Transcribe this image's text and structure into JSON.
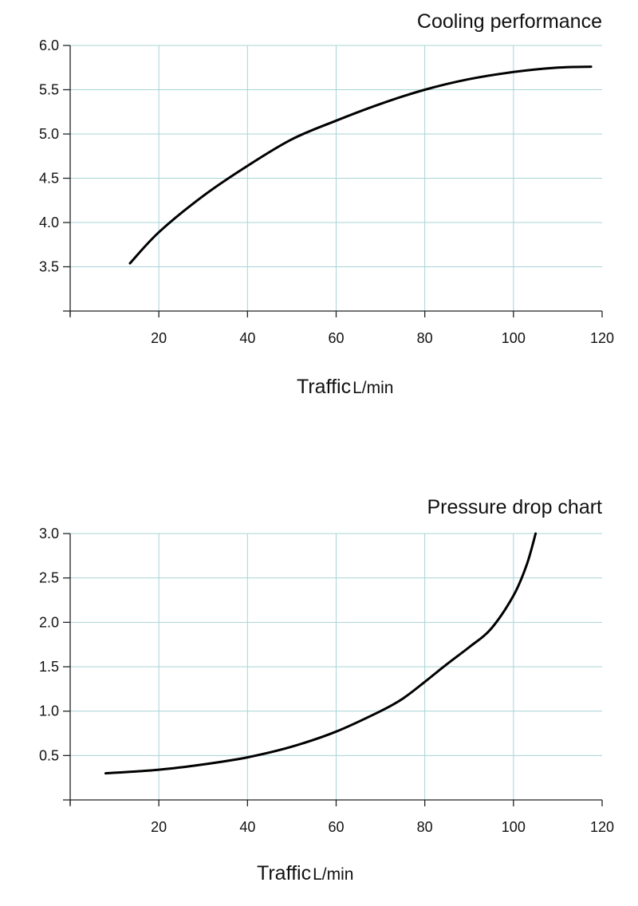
{
  "chart_data": [
    {
      "type": "line",
      "title": "Cooling performance",
      "xlabel": "Traffic",
      "xlabel_unit": "L/min",
      "ylabel": "",
      "xlim": [
        0,
        120
      ],
      "ylim": [
        3.0,
        6.0
      ],
      "x_ticks": [
        20,
        40,
        60,
        80,
        100,
        120
      ],
      "y_ticks": [
        3.5,
        4.0,
        4.5,
        5.0,
        5.5,
        6.0
      ],
      "grid": true,
      "x": [
        13.5,
        20,
        30,
        40,
        50,
        60,
        70,
        80,
        90,
        100,
        110,
        117.5
      ],
      "y": [
        3.54,
        3.89,
        4.3,
        4.64,
        4.94,
        5.15,
        5.34,
        5.5,
        5.62,
        5.7,
        5.75,
        5.76
      ]
    },
    {
      "type": "line",
      "title": "Pressure drop chart",
      "xlabel": "Traffic",
      "xlabel_unit": "L/min",
      "ylabel": "",
      "xlim": [
        0,
        120
      ],
      "ylim": [
        0,
        3.0
      ],
      "x_ticks": [
        20,
        40,
        60,
        80,
        100,
        120
      ],
      "y_ticks": [
        0.5,
        1.0,
        1.5,
        2.0,
        2.5,
        3.0
      ],
      "grid": true,
      "x": [
        8,
        20,
        30,
        40,
        50,
        60,
        70,
        75,
        80,
        85,
        90,
        95,
        100,
        103,
        105
      ],
      "y": [
        0.3,
        0.34,
        0.4,
        0.48,
        0.6,
        0.77,
        1.0,
        1.14,
        1.33,
        1.53,
        1.72,
        1.93,
        2.3,
        2.65,
        3.0
      ]
    }
  ]
}
